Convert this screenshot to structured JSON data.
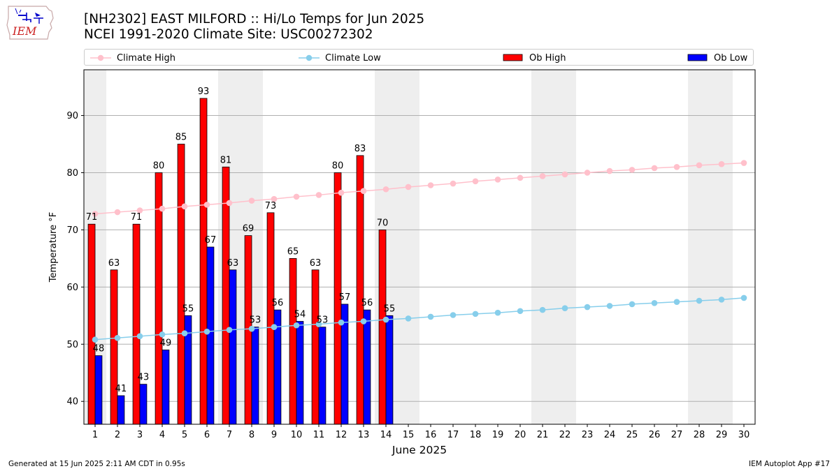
{
  "header": {
    "title_line1": "[NH2302] EAST MILFORD :: Hi/Lo Temps for Jun 2025",
    "title_line2": "NCEI 1991-2020 Climate Site: USC00272302"
  },
  "logo": {
    "text": "IEM",
    "icon": "iem-iowa-logo"
  },
  "legend": {
    "climate_high": "Climate High",
    "climate_low": "Climate Low",
    "ob_high": "Ob High",
    "ob_low": "Ob Low"
  },
  "footer": {
    "generated": "Generated at 15 Jun 2025 2:11 AM CDT in 0.95s",
    "app": "IEM Autoplot App #17"
  },
  "colors": {
    "ob_high": "#ff0000",
    "ob_low": "#0000ff",
    "climate_high": "#ffc0cb",
    "climate_low": "#87ceeb",
    "weekend_shade": "#eeeeee",
    "grid": "#b0b0b0"
  },
  "chart_data": {
    "type": "bar",
    "xlabel": "June 2025",
    "ylabel": "Temperature °F",
    "xlim": [
      0.5,
      30.5
    ],
    "ylim": [
      36,
      98
    ],
    "yticks": [
      40,
      50,
      60,
      70,
      80,
      90
    ],
    "grid": "y",
    "legend_position": "top",
    "weekend_shading": [
      [
        1,
        1
      ],
      [
        7,
        8
      ],
      [
        14,
        15
      ],
      [
        21,
        22
      ],
      [
        28,
        29
      ]
    ],
    "categories": [
      "1",
      "2",
      "3",
      "4",
      "5",
      "6",
      "7",
      "8",
      "9",
      "10",
      "11",
      "12",
      "13",
      "14",
      "15",
      "16",
      "17",
      "18",
      "19",
      "20",
      "21",
      "22",
      "23",
      "24",
      "25",
      "26",
      "27",
      "28",
      "29",
      "30"
    ],
    "series": [
      {
        "name": "Ob High",
        "kind": "bar",
        "color": "#ff0000",
        "values": [
          71,
          63,
          71,
          80,
          85,
          93,
          81,
          69,
          73,
          65,
          63,
          80,
          83,
          70,
          null,
          null,
          null,
          null,
          null,
          null,
          null,
          null,
          null,
          null,
          null,
          null,
          null,
          null,
          null,
          null
        ]
      },
      {
        "name": "Ob Low",
        "kind": "bar",
        "color": "#0000ff",
        "values": [
          48,
          41,
          43,
          49,
          55,
          67,
          63,
          53,
          56,
          54,
          53,
          57,
          56,
          55,
          null,
          null,
          null,
          null,
          null,
          null,
          null,
          null,
          null,
          null,
          null,
          null,
          null,
          null,
          null,
          null
        ]
      },
      {
        "name": "Climate High",
        "kind": "line",
        "color": "#ffc0cb",
        "values": [
          72.8,
          73.1,
          73.4,
          73.7,
          74.1,
          74.4,
          74.7,
          75.1,
          75.4,
          75.8,
          76.1,
          76.5,
          76.8,
          77.1,
          77.5,
          77.8,
          78.1,
          78.5,
          78.8,
          79.1,
          79.4,
          79.7,
          80.0,
          80.3,
          80.5,
          80.8,
          81.0,
          81.3,
          81.5,
          81.7
        ]
      },
      {
        "name": "Climate Low",
        "kind": "line",
        "color": "#87ceeb",
        "values": [
          50.8,
          51.1,
          51.4,
          51.7,
          51.9,
          52.2,
          52.5,
          52.7,
          53.0,
          53.3,
          53.5,
          53.8,
          54.0,
          54.3,
          54.5,
          54.8,
          55.1,
          55.3,
          55.5,
          55.8,
          56.0,
          56.3,
          56.5,
          56.7,
          57.0,
          57.2,
          57.4,
          57.6,
          57.8,
          58.1
        ]
      }
    ]
  }
}
